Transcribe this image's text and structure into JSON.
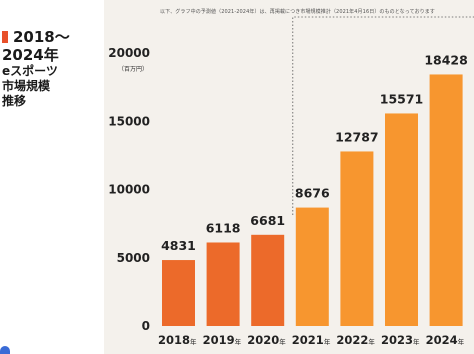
{
  "side_title": {
    "line1": "2018～",
    "line2": "2024年",
    "line3": "eスポーツ",
    "line4": "市場規模",
    "line5": "推移"
  },
  "top_note": "以下、グラフ中の予測値（2021-2024年）は、再掲載につき市場規模推計（2021年4月16日）のものとなっております",
  "colors": {
    "actual": "#ec6a2a",
    "forecast": "#f7962f",
    "panel": "#f4f1ec",
    "accent": "#e8502a"
  },
  "chart_data": {
    "type": "bar",
    "title": "2018～2024年 eスポーツ市場規模推移",
    "unit": "（百万円）",
    "categories": [
      "2018",
      "2019",
      "2020",
      "2021",
      "2022",
      "2023",
      "2024"
    ],
    "category_suffix": "年",
    "values": [
      4831,
      6118,
      6681,
      8676,
      12787,
      15571,
      18428
    ],
    "value_labels": [
      "4831",
      "6118",
      "6681",
      "8676",
      "12787",
      "15571",
      "18428"
    ],
    "forecast_from_index": 3,
    "ylim": [
      0,
      20000
    ],
    "yticks": [
      0,
      5000,
      10000,
      15000,
      20000
    ],
    "ytick_labels": [
      "0",
      "5000",
      "10000",
      "15000",
      "20000"
    ],
    "grid": false
  }
}
